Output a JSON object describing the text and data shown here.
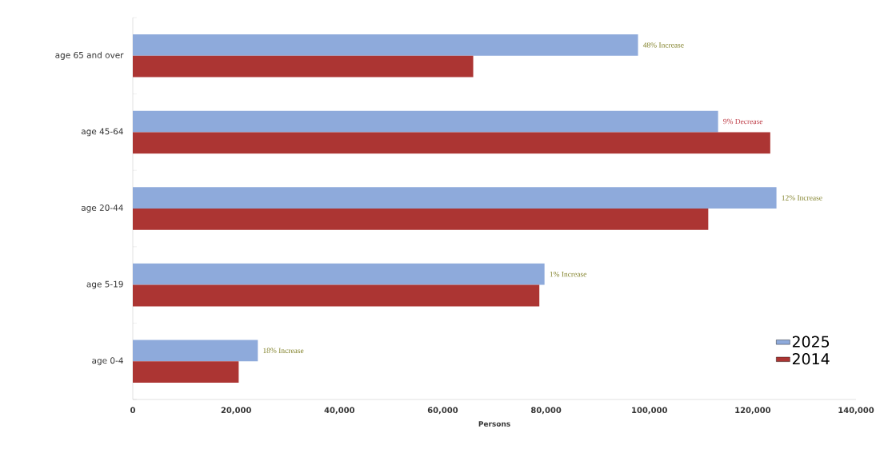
{
  "chart_data": {
    "type": "bar",
    "orientation": "horizontal",
    "xlabel": "Persons",
    "categories": [
      "age 65 and over",
      "age 45-64",
      "age 20-44",
      "age 5-19",
      "age 0-4"
    ],
    "series": [
      {
        "name": "2025",
        "color": "#8eaadb",
        "values": [
          97800,
          113300,
          124600,
          79700,
          24200
        ]
      },
      {
        "name": "2014",
        "color": "#ac3533",
        "values": [
          65900,
          123400,
          111400,
          78700,
          20500
        ]
      }
    ],
    "xlim": [
      0,
      140000
    ],
    "xticks": [
      0,
      {
        "value": 20000,
        "label": "20,000"
      },
      {
        "value": 40000,
        "label": "40,000"
      },
      {
        "value": 60000,
        "label": "60,000"
      },
      {
        "value": 80000,
        "label": "80,000"
      },
      {
        "value": 100000,
        "label": "100,000"
      },
      {
        "value": 120000,
        "label": "120,000"
      },
      {
        "value": 140000,
        "label": "140,000"
      }
    ],
    "annotations": [
      {
        "text": "48% Increase",
        "x": 97800,
        "y": "age 65 and over"
      },
      {
        "text": "9% Decrease",
        "x": 113300,
        "y": "age 45-64"
      },
      {
        "text": "12% Increase",
        "x": 124600,
        "y": "age 20-44"
      },
      {
        "text": "1% Increase",
        "x": 79700,
        "y": "age 5-19"
      },
      {
        "text": "18% Increase",
        "x": 24200,
        "y": "age 0-4"
      }
    ],
    "grid": false,
    "legend": "bottom right"
  }
}
